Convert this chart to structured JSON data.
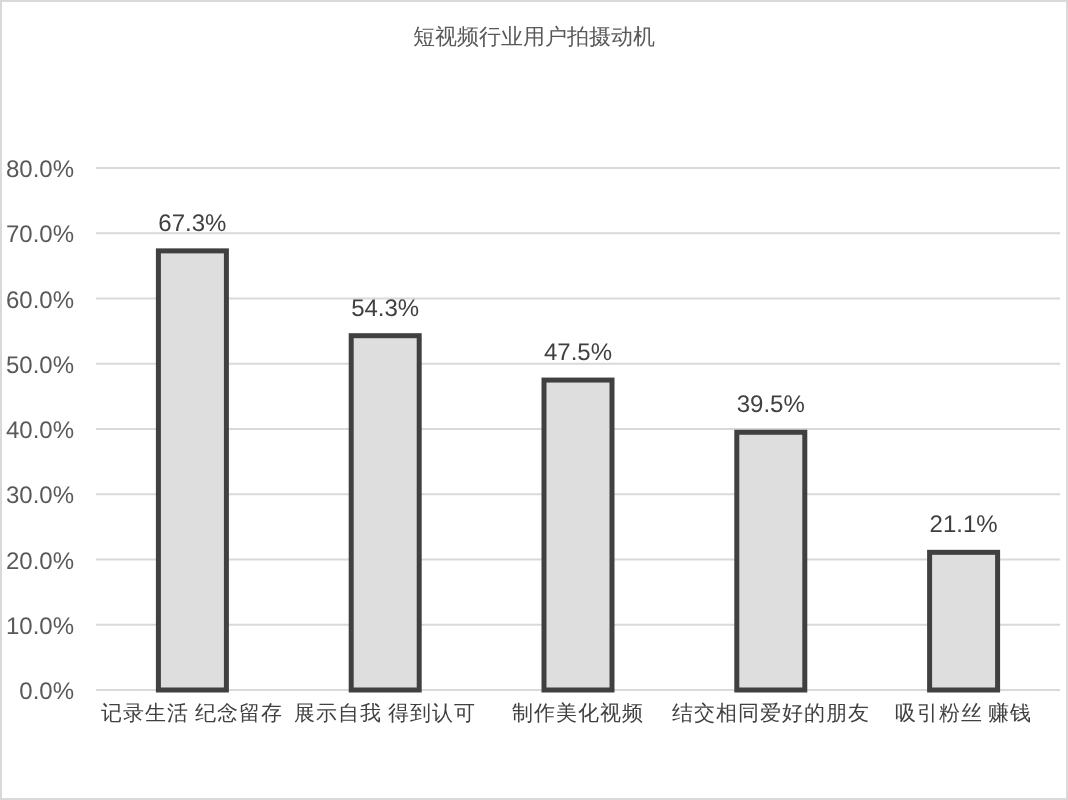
{
  "chart_data": {
    "type": "bar",
    "title": "短视频行业用户拍摄动机",
    "categories": [
      "记录生活 纪念留存",
      "展示自我 得到认可",
      "制作美化视频",
      "结交相同爱好的朋友",
      "吸引粉丝 赚钱"
    ],
    "values": [
      67.3,
      54.3,
      47.5,
      39.5,
      21.1
    ],
    "color": "#dedede",
    "value_labels": [
      "67.3%",
      "54.3%",
      "47.5%",
      "39.5%",
      "21.1%"
    ],
    "ylim": [
      0,
      80
    ],
    "yticks": [
      {
        "value": 0,
        "label": "0.0%"
      },
      {
        "value": 10,
        "label": "10.0%"
      },
      {
        "value": 20,
        "label": "20.0%"
      },
      {
        "value": 30,
        "label": "30.0%"
      },
      {
        "value": 40,
        "label": "40.0%"
      },
      {
        "value": 50,
        "label": "50.0%"
      },
      {
        "value": 60,
        "label": "60.0%"
      },
      {
        "value": 70,
        "label": "70.0%"
      },
      {
        "value": 80,
        "label": "80.0%"
      }
    ],
    "grid": "y"
  }
}
